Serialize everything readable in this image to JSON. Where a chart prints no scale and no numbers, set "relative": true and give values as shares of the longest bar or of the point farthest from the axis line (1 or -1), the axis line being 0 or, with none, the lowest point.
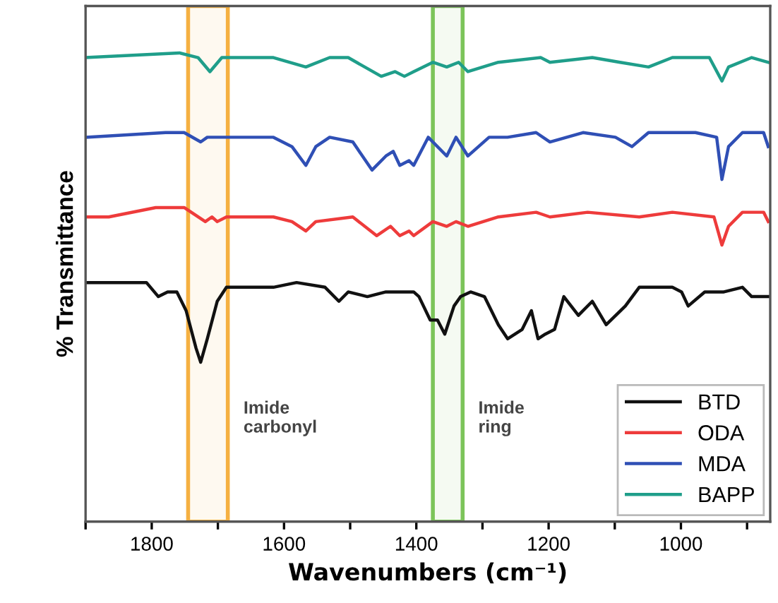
{
  "chart_data": {
    "type": "line",
    "relative": true,
    "xlabel": "Wavenumbers (cm⁻¹)",
    "ylabel": "% Transmittance",
    "xlim": [
      1900,
      865
    ],
    "xticks": [
      {
        "value": 1900,
        "label": null
      },
      1800,
      {
        "value": 1700,
        "label": null
      },
      1600,
      {
        "value": 1500,
        "label": null
      },
      1400,
      {
        "value": 1300,
        "label": null
      },
      1200,
      {
        "value": 1100,
        "label": null
      },
      1000,
      {
        "value": 900,
        "label": null
      }
    ],
    "tick_labels": "x",
    "legend": "bottom right",
    "grid": false,
    "series": [
      {
        "name": "BTD",
        "color": "#111111",
        "x": [
          1900,
          1808,
          1790,
          1776,
          1762,
          1748,
          1733,
          1726,
          1716,
          1701,
          1687,
          1652,
          1616,
          1581,
          1538,
          1517,
          1503,
          1474,
          1446,
          1404,
          1396,
          1379,
          1368,
          1357,
          1343,
          1333,
          1318,
          1297,
          1276,
          1262,
          1240,
          1226,
          1216,
          1205,
          1191,
          1177,
          1155,
          1134,
          1113,
          1084,
          1063,
          1013,
          999,
          989,
          964,
          935,
          907,
          893,
          868
        ],
        "values": [
          0.51,
          0.51,
          0.48,
          0.49,
          0.49,
          0.45,
          0.37,
          0.34,
          0.39,
          0.47,
          0.5,
          0.5,
          0.5,
          0.51,
          0.5,
          0.47,
          0.49,
          0.48,
          0.49,
          0.49,
          0.48,
          0.43,
          0.43,
          0.4,
          0.46,
          0.48,
          0.49,
          0.48,
          0.42,
          0.39,
          0.41,
          0.45,
          0.39,
          0.4,
          0.41,
          0.48,
          0.44,
          0.47,
          0.42,
          0.46,
          0.5,
          0.5,
          0.49,
          0.46,
          0.49,
          0.49,
          0.5,
          0.48,
          0.48
        ]
      },
      {
        "name": "ODA",
        "color": "#ee3b3b",
        "x": [
          1900,
          1865,
          1794,
          1751,
          1719,
          1709,
          1701,
          1687,
          1616,
          1588,
          1567,
          1552,
          1496,
          1460,
          1439,
          1425,
          1411,
          1404,
          1375,
          1354,
          1340,
          1322,
          1276,
          1219,
          1198,
          1141,
          1063,
          1013,
          950,
          938,
          928,
          907,
          875,
          868
        ],
        "values": [
          0.65,
          0.65,
          0.67,
          0.67,
          0.64,
          0.65,
          0.64,
          0.65,
          0.65,
          0.64,
          0.62,
          0.64,
          0.65,
          0.61,
          0.63,
          0.61,
          0.62,
          0.61,
          0.64,
          0.63,
          0.64,
          0.63,
          0.65,
          0.66,
          0.65,
          0.66,
          0.65,
          0.66,
          0.65,
          0.59,
          0.63,
          0.66,
          0.66,
          0.64
        ]
      },
      {
        "name": "MDA",
        "color": "#2f4fb5",
        "x": [
          1900,
          1779,
          1751,
          1726,
          1716,
          1687,
          1616,
          1588,
          1567,
          1552,
          1531,
          1496,
          1467,
          1446,
          1435,
          1425,
          1411,
          1404,
          1382,
          1354,
          1340,
          1322,
          1290,
          1262,
          1219,
          1198,
          1148,
          1099,
          1074,
          1049,
          978,
          946,
          938,
          928,
          907,
          875,
          868
        ],
        "values": [
          0.82,
          0.83,
          0.83,
          0.81,
          0.82,
          0.82,
          0.82,
          0.8,
          0.76,
          0.8,
          0.82,
          0.81,
          0.75,
          0.78,
          0.79,
          0.76,
          0.77,
          0.76,
          0.82,
          0.78,
          0.82,
          0.78,
          0.82,
          0.82,
          0.83,
          0.81,
          0.83,
          0.82,
          0.8,
          0.83,
          0.83,
          0.82,
          0.73,
          0.8,
          0.83,
          0.83,
          0.8
        ]
      },
      {
        "name": "BAPP",
        "color": "#1f9e8a",
        "x": [
          1900,
          1758,
          1730,
          1712,
          1694,
          1616,
          1567,
          1531,
          1503,
          1453,
          1432,
          1418,
          1404,
          1375,
          1354,
          1336,
          1322,
          1276,
          1212,
          1198,
          1134,
          1092,
          1049,
          1013,
          957,
          938,
          928,
          893,
          868
        ],
        "values": [
          0.99,
          1.0,
          0.99,
          0.96,
          0.99,
          0.99,
          0.97,
          0.99,
          0.99,
          0.95,
          0.96,
          0.95,
          0.96,
          0.98,
          0.97,
          0.98,
          0.96,
          0.98,
          0.99,
          0.98,
          0.99,
          0.98,
          0.97,
          0.99,
          0.99,
          0.94,
          0.97,
          0.99,
          0.98
        ]
      }
    ],
    "bands": [
      {
        "axis": "x",
        "from": 1745,
        "to": 1685,
        "color": "#f5b041"
      },
      {
        "axis": "x",
        "from": 1375,
        "to": 1330,
        "color": "#7cc45a"
      }
    ],
    "annotations": [
      "Imide\ncarbonyl",
      "Imide\nring"
    ]
  }
}
